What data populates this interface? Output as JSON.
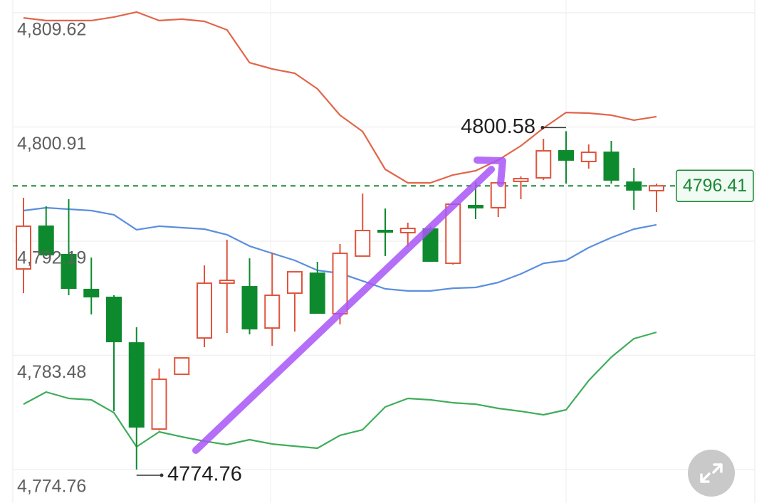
{
  "chart_data": {
    "type": "candlestick",
    "ylim": [
      4772.21,
      4810.59
    ],
    "yticks": [
      {
        "value": 4809.62,
        "label": "4,809.62"
      },
      {
        "value": 4800.91,
        "label": "4,800.91"
      },
      {
        "value": 4792.19,
        "label": "4,792.19"
      },
      {
        "value": 4783.48,
        "label": "4,783.48"
      },
      {
        "value": 4774.76,
        "label": "4,774.76"
      }
    ],
    "grid": true,
    "up_color": "#e0533c",
    "down_color": "#0e8a2e",
    "open": [
      4790.07,
      4793.33,
      4791.16,
      4788.5,
      4787.9,
      4784.42,
      4777.85,
      4782.03,
      4784.8,
      4788.98,
      4788.71,
      4785.56,
      4788.22,
      4789.74,
      4786.65,
      4791.05,
      4793.0,
      4792.84,
      4793.11,
      4790.5,
      4794.9,
      4794.74,
      4796.75,
      4797.02,
      4799.08,
      4798.27,
      4798.97,
      4796.69,
      4796.04
    ],
    "high": [
      4795.5,
      4794.85,
      4795.39,
      4790.94,
      4788.06,
      4785.62,
      4782.47,
      4783.28,
      4790.34,
      4792.3,
      4790.88,
      4791.32,
      4789.85,
      4790.61,
      4791.97,
      4795.82,
      4794.68,
      4793.6,
      4793.33,
      4795.01,
      4796.69,
      4796.64,
      4797.13,
      4800.0,
      4800.58,
      4799.57,
      4799.84,
      4797.78,
      4796.58
    ],
    "low": [
      4788.22,
      4791.05,
      4788.06,
      4786.6,
      4779.21,
      4774.76,
      4777.75,
      4782.03,
      4784.1,
      4785.18,
      4785.08,
      4784.21,
      4785.29,
      4786.65,
      4785.84,
      4791.05,
      4791.05,
      4791.75,
      4790.61,
      4790.4,
      4793.87,
      4794.03,
      4795.39,
      4796.86,
      4796.58,
      4797.72,
      4796.58,
      4794.58,
      4794.41
    ],
    "close": [
      4793.33,
      4791.16,
      4788.6,
      4787.95,
      4784.53,
      4778.02,
      4781.65,
      4783.28,
      4788.98,
      4789.2,
      4785.51,
      4788.06,
      4789.85,
      4786.7,
      4791.26,
      4793.0,
      4792.89,
      4793.16,
      4790.67,
      4795.01,
      4794.74,
      4796.64,
      4796.96,
      4799.08,
      4798.38,
      4798.97,
      4796.86,
      4796.1,
      4796.41
    ],
    "bands": [
      {
        "color": "#e2654a",
        "values": [
          4809.23,
          4809.02,
          4809.02,
          4809.02,
          4809.29,
          4809.67,
          4809.02,
          4809.13,
          4808.96,
          4808.31,
          4805.81,
          4805.33,
          4805.0,
          4803.81,
          4801.8,
          4800.55,
          4797.67,
          4796.64,
          4796.64,
          4797.24,
          4797.56,
          4798.38,
          4799.46,
          4800.82,
          4802.01,
          4801.96,
          4801.8,
          4801.42,
          4801.69
        ]
      },
      {
        "color": "#5b8fde",
        "values": [
          4794.52,
          4794.74,
          4794.63,
          4794.52,
          4794.2,
          4793.06,
          4793.33,
          4793.22,
          4793.11,
          4792.68,
          4791.81,
          4791.26,
          4790.72,
          4789.96,
          4789.74,
          4789.15,
          4788.55,
          4788.39,
          4788.39,
          4788.6,
          4788.66,
          4789.04,
          4789.69,
          4790.5,
          4790.72,
          4791.7,
          4792.46,
          4793.11,
          4793.44
        ]
      },
      {
        "color": "#3fad5a",
        "values": [
          4779.75,
          4780.68,
          4780.19,
          4780.08,
          4779.1,
          4776.5,
          4777.64,
          4777.26,
          4776.93,
          4776.66,
          4777.04,
          4776.71,
          4776.55,
          4776.39,
          4777.37,
          4777.8,
          4779.54,
          4780.19,
          4780.08,
          4779.86,
          4779.75,
          4779.43,
          4779.21,
          4778.94,
          4779.32,
          4781.55,
          4783.34,
          4784.75,
          4785.24
        ]
      }
    ],
    "annotations": {
      "high": 4800.58,
      "low": 4774.76
    },
    "last_price": 4796.41
  }
}
